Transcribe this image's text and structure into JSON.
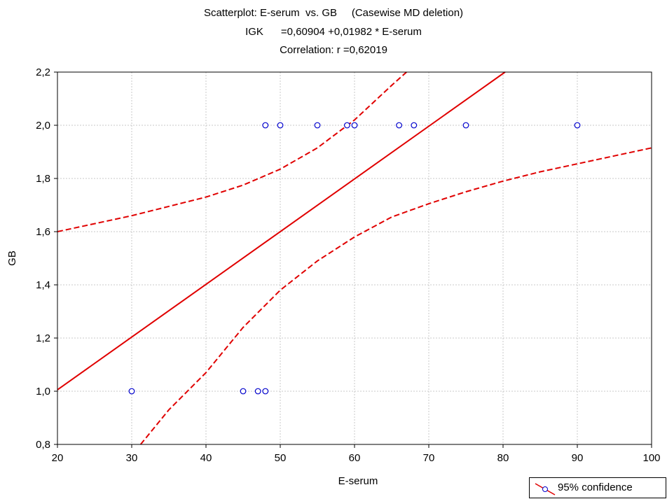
{
  "title_lines": [
    "Scatterplot: E-serum  vs. GB     (Casewise MD deletion)",
    "IGK      =0,60904 +0,01982 * E-serum",
    "Correlation: r =0,62019"
  ],
  "legend_label": "95% confidence",
  "colors": {
    "line": "#e00000",
    "points": "#0000cc",
    "grid": "#c8c8c8"
  },
  "chart_data": {
    "type": "scatter",
    "title": "Scatterplot: E-serum  vs. GB     (Casewise MD deletion)",
    "subtitle": [
      "IGK      =0,60904 +0,01982 * E-serum",
      "Correlation: r =0,62019"
    ],
    "xlabel": "E-serum",
    "ylabel": "GB",
    "xlim": [
      20,
      100
    ],
    "ylim": [
      0.8,
      2.2
    ],
    "xticks": [
      20,
      30,
      40,
      50,
      60,
      70,
      80,
      90,
      100
    ],
    "xtick_labels": [
      "20",
      "30",
      "40",
      "50",
      "60",
      "70",
      "80",
      "90",
      "100"
    ],
    "yticks": [
      0.8,
      1.0,
      1.2,
      1.4,
      1.6,
      1.8,
      2.0,
      2.2
    ],
    "ytick_labels": [
      "0,8",
      "1,0",
      "1,2",
      "1,4",
      "1,6",
      "1,8",
      "2,0",
      "2,2"
    ],
    "grid": true,
    "legend_position": "bottom-right",
    "points": [
      {
        "x": 30,
        "y": 1.0
      },
      {
        "x": 45,
        "y": 1.0
      },
      {
        "x": 47,
        "y": 1.0
      },
      {
        "x": 48,
        "y": 1.0
      },
      {
        "x": 48,
        "y": 2.0
      },
      {
        "x": 50,
        "y": 2.0
      },
      {
        "x": 55,
        "y": 2.0
      },
      {
        "x": 59,
        "y": 2.0
      },
      {
        "x": 60,
        "y": 2.0
      },
      {
        "x": 66,
        "y": 2.0
      },
      {
        "x": 68,
        "y": 2.0
      },
      {
        "x": 75,
        "y": 2.0
      },
      {
        "x": 90,
        "y": 2.0
      }
    ],
    "regression": {
      "intercept": 0.60904,
      "slope": 0.01982
    },
    "confidence_upper": [
      [
        20,
        1.6
      ],
      [
        30,
        1.66
      ],
      [
        40,
        1.73
      ],
      [
        45,
        1.775
      ],
      [
        50,
        1.835
      ],
      [
        55,
        1.915
      ],
      [
        60,
        2.02
      ],
      [
        65,
        2.15
      ],
      [
        67,
        2.2
      ]
    ],
    "confidence_lower": [
      [
        31.2,
        0.8
      ],
      [
        35,
        0.93
      ],
      [
        40,
        1.07
      ],
      [
        45,
        1.24
      ],
      [
        50,
        1.38
      ],
      [
        55,
        1.49
      ],
      [
        60,
        1.58
      ],
      [
        65,
        1.655
      ],
      [
        70,
        1.705
      ],
      [
        75,
        1.75
      ],
      [
        80,
        1.79
      ],
      [
        85,
        1.825
      ],
      [
        90,
        1.855
      ],
      [
        95,
        1.885
      ],
      [
        100,
        1.915
      ]
    ]
  }
}
